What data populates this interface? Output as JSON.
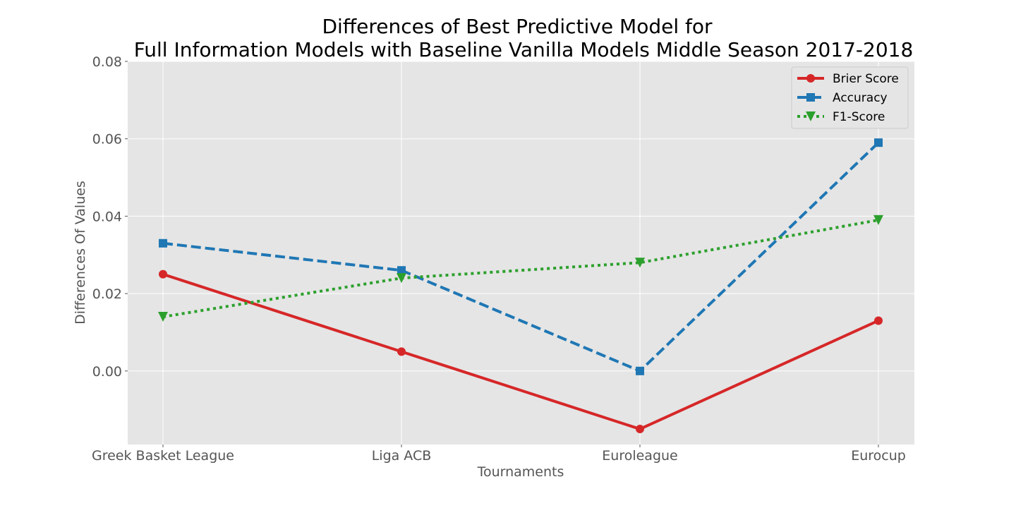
{
  "chart_data": {
    "type": "line",
    "title_lines": [
      "Differences of Best Predictive Model for",
      "Full Information Models  with Baseline Vanilla Models Middle Season 2017-2018"
    ],
    "xlabel": "Tournaments",
    "ylabel": "Differences Of Values",
    "categories": [
      "Greek Basket League",
      "Liga ACB",
      "Euroleague",
      "Eurocup"
    ],
    "ylim": [
      -0.019,
      0.08
    ],
    "yticks": [
      0.0,
      0.02,
      0.04,
      0.06,
      0.08
    ],
    "ytick_labels": [
      "0.00",
      "0.02",
      "0.04",
      "0.06",
      "0.08"
    ],
    "grid": true,
    "legend_position": "top-right",
    "series": [
      {
        "name": "Brier Score",
        "values": [
          0.025,
          0.005,
          -0.015,
          0.013
        ],
        "color": "#d62728",
        "dash": "solid",
        "marker": "circle"
      },
      {
        "name": "Accuracy",
        "values": [
          0.033,
          0.026,
          0.0,
          0.059
        ],
        "color": "#1f77b4",
        "dash": "dashed",
        "marker": "square"
      },
      {
        "name": "F1-Score",
        "values": [
          0.014,
          0.024,
          0.028,
          0.039
        ],
        "color": "#2ca02c",
        "dash": "dotted",
        "marker": "triangle-down"
      }
    ]
  }
}
